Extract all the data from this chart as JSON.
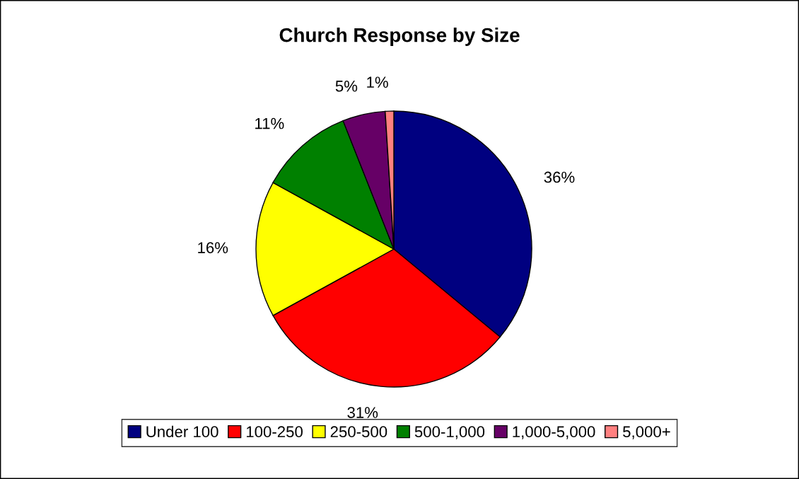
{
  "chart_data": {
    "type": "pie",
    "title": "Church Response by Size",
    "categories": [
      "Under 100",
      "100-250",
      "250-500",
      "500-1,000",
      "1,000-5,000",
      "5,000+"
    ],
    "values": [
      36,
      31,
      16,
      11,
      5,
      1
    ],
    "value_labels": [
      "36%",
      "31%",
      "16%",
      "11%",
      "5%",
      "1%"
    ],
    "colors": [
      "#000080",
      "#ff0000",
      "#ffff00",
      "#008000",
      "#660066",
      "#ff8080"
    ],
    "legend": "bottom"
  }
}
